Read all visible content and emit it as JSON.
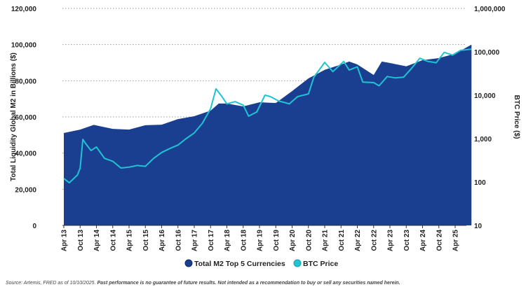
{
  "chart_data": {
    "type": "area",
    "title": "",
    "ylabel_left": "Total Liquidity Global M2 in Billions ($)",
    "ylabel_right": "BTC Price ($)",
    "ylim_left": [
      0,
      120000
    ],
    "ylim_right": [
      10,
      1000000
    ],
    "right_scale": "log",
    "yticks_left": [
      "0",
      "20,000",
      "40,000",
      "60,000",
      "80,000",
      "100,000",
      "120,000"
    ],
    "yticks_right": [
      "10",
      "100",
      "1,000",
      "10,000",
      "100,000",
      "1,000,000"
    ],
    "xticks": [
      "Apr 13",
      "Oct 13",
      "Apr 14",
      "Oct 14",
      "Apr 15",
      "Oct 15",
      "Apr 16",
      "Oct 16",
      "Apr 17",
      "Oct 17",
      "Apr 18",
      "Oct 18",
      "Apr 19",
      "Oct 19",
      "Apr 20",
      "Oct 20",
      "Apr 21",
      "Oct 21",
      "Apr 22",
      "Oct 22",
      "Apr 23",
      "Oct 23",
      "Apr 24",
      "Oct 24",
      "Apr 25"
    ],
    "grid": "horizontal dotted",
    "legend_position": "bottom",
    "series": [
      {
        "name": "Total M2 Top 5 Currencies",
        "axis": "left",
        "type": "area",
        "color": "#1a3f91",
        "x": [
          "2013-04",
          "2013-10",
          "2014-03",
          "2014-10",
          "2015-04",
          "2015-10",
          "2016-04",
          "2016-10",
          "2017-04",
          "2017-10",
          "2018-01",
          "2018-04",
          "2018-10",
          "2019-04",
          "2019-10",
          "2020-04",
          "2020-10",
          "2021-04",
          "2021-10",
          "2022-01",
          "2022-04",
          "2022-10",
          "2023-01",
          "2023-04",
          "2023-10",
          "2024-04",
          "2024-10",
          "2025-04",
          "2025-10"
        ],
        "values": [
          51100,
          53000,
          55600,
          53400,
          53000,
          55400,
          55700,
          58800,
          60400,
          63500,
          67400,
          67400,
          65800,
          68100,
          67700,
          74300,
          81300,
          86000,
          89000,
          90600,
          89000,
          83200,
          90600,
          89800,
          88000,
          91400,
          92500,
          95000,
          100000
        ]
      },
      {
        "name": "BTC Price",
        "axis": "right",
        "type": "line",
        "color": "#1fc3d2",
        "x": [
          "2013-04",
          "2013-06",
          "2013-09",
          "2013-10",
          "2013-11",
          "2013-12",
          "2014-02",
          "2014-04",
          "2014-07",
          "2014-10",
          "2015-01",
          "2015-04",
          "2015-07",
          "2015-10",
          "2016-01",
          "2016-04",
          "2016-07",
          "2016-10",
          "2017-01",
          "2017-04",
          "2017-07",
          "2017-10",
          "2017-12",
          "2018-02",
          "2018-04",
          "2018-07",
          "2018-10",
          "2018-12",
          "2019-03",
          "2019-06",
          "2019-08",
          "2019-11",
          "2020-03",
          "2020-06",
          "2020-10",
          "2020-12",
          "2021-04",
          "2021-07",
          "2021-11",
          "2022-01",
          "2022-04",
          "2022-06",
          "2022-10",
          "2022-12",
          "2023-03",
          "2023-06",
          "2023-09",
          "2023-12",
          "2024-03",
          "2024-06",
          "2024-09",
          "2024-12",
          "2025-03",
          "2025-06",
          "2025-10"
        ],
        "values": [
          120,
          96,
          145,
          210,
          960,
          770,
          530,
          640,
          350,
          300,
          210,
          220,
          240,
          230,
          350,
          480,
          590,
          710,
          1000,
          1350,
          2260,
          4900,
          14000,
          9600,
          6300,
          7100,
          5900,
          3300,
          4100,
          10000,
          9300,
          7400,
          6300,
          9300,
          10700,
          26000,
          57000,
          35000,
          60000,
          38000,
          45000,
          20000,
          19500,
          16500,
          27000,
          25000,
          26000,
          42000,
          71000,
          60000,
          56000,
          97000,
          84000,
          108000,
          115000
        ]
      }
    ]
  },
  "source_note": {
    "source": "Source: Artemis, FRED as of 10/10/2025.",
    "disclaimer": "Past performance is no guarantee of future results. Not intended as a recommendation to buy or sell any securities named herein."
  }
}
